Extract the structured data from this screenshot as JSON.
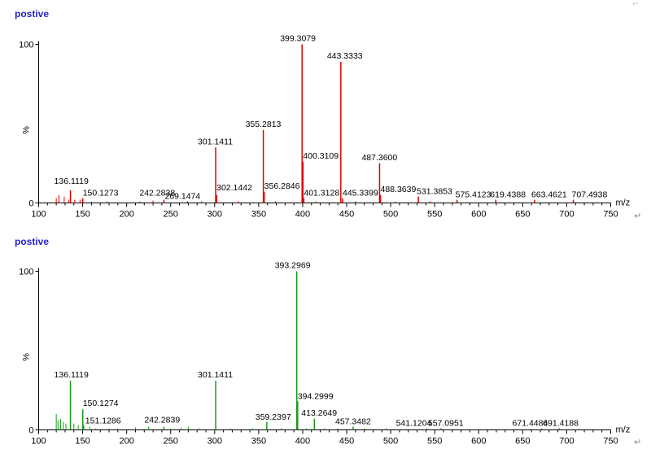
{
  "chart_data": [
    {
      "type": "bar",
      "title": "postive",
      "color": "#e00000",
      "xlabel": "m/z",
      "ylabel": "%",
      "xlim": [
        100,
        750
      ],
      "ylim": [
        0,
        100
      ],
      "xticks": [
        "100",
        "150",
        "200",
        "250",
        "300",
        "350",
        "400",
        "450",
        "500",
        "550",
        "600",
        "650",
        "700",
        "750"
      ],
      "yticks": [
        "0",
        "100"
      ],
      "peaks": [
        {
          "x": 136.1119,
          "y": 8,
          "label": "136.1119"
        },
        {
          "x": 150.1273,
          "y": 3,
          "label": "150.1273"
        },
        {
          "x": 242.2838,
          "y": 2,
          "label": "242.2838"
        },
        {
          "x": 269.1474,
          "y": 1,
          "label": "269.1474"
        },
        {
          "x": 301.1411,
          "y": 35,
          "label": "301.1411"
        },
        {
          "x": 302.1442,
          "y": 5,
          "label": "302.1442"
        },
        {
          "x": 355.2813,
          "y": 46,
          "label": "355.2813"
        },
        {
          "x": 356.2846,
          "y": 7,
          "label": "356.2846"
        },
        {
          "x": 399.3079,
          "y": 100,
          "label": "399.3079"
        },
        {
          "x": 400.3109,
          "y": 26,
          "label": "400.3109"
        },
        {
          "x": 401.3128,
          "y": 3,
          "label": "401.3128"
        },
        {
          "x": 443.3333,
          "y": 89,
          "label": "443.3333"
        },
        {
          "x": 445.3399,
          "y": 3,
          "label": "445.3399"
        },
        {
          "x": 487.36,
          "y": 25,
          "label": "487.3600"
        },
        {
          "x": 488.3639,
          "y": 5,
          "label": "488.3639"
        },
        {
          "x": 531.3853,
          "y": 4,
          "label": "531.3853"
        },
        {
          "x": 575.4123,
          "y": 2,
          "label": "575.4123"
        },
        {
          "x": 619.4388,
          "y": 2,
          "label": "619.4388"
        },
        {
          "x": 663.4621,
          "y": 2,
          "label": "663.4621"
        },
        {
          "x": 707.4938,
          "y": 2,
          "label": "707.4938"
        }
      ]
    },
    {
      "type": "bar",
      "title": "postive",
      "color": "#1a9a1a",
      "xlabel": "m/z",
      "ylabel": "%",
      "xlim": [
        100,
        750
      ],
      "ylim": [
        0,
        100
      ],
      "xticks": [
        "100",
        "150",
        "200",
        "250",
        "300",
        "350",
        "400",
        "450",
        "500",
        "550",
        "600",
        "650",
        "700",
        "750"
      ],
      "yticks": [
        "0",
        "100"
      ],
      "peaks": [
        {
          "x": 136.1119,
          "y": 31,
          "label": "136.1119"
        },
        {
          "x": 150.1274,
          "y": 13,
          "label": "150.1274"
        },
        {
          "x": 151.1286,
          "y": 3,
          "label": "151.1286"
        },
        {
          "x": 242.2839,
          "y": 2,
          "label": "242.2839"
        },
        {
          "x": 301.1411,
          "y": 31,
          "label": "301.1411"
        },
        {
          "x": 359.2397,
          "y": 5,
          "label": "359.2397"
        },
        {
          "x": 393.2969,
          "y": 100,
          "label": "393.2969"
        },
        {
          "x": 394.2999,
          "y": 18,
          "label": "394.2999"
        },
        {
          "x": 413.2649,
          "y": 7,
          "label": "413.2649"
        },
        {
          "x": 457.3482,
          "y": 2,
          "label": "457.3482"
        },
        {
          "x": 541.1204,
          "y": 1,
          "label": "541.1204"
        },
        {
          "x": 557.0951,
          "y": 1,
          "label": "557.0951"
        },
        {
          "x": 671.4484,
          "y": 1,
          "label": "671.4484"
        },
        {
          "x": 691.4188,
          "y": 1,
          "label": "691.4188"
        }
      ]
    }
  ]
}
